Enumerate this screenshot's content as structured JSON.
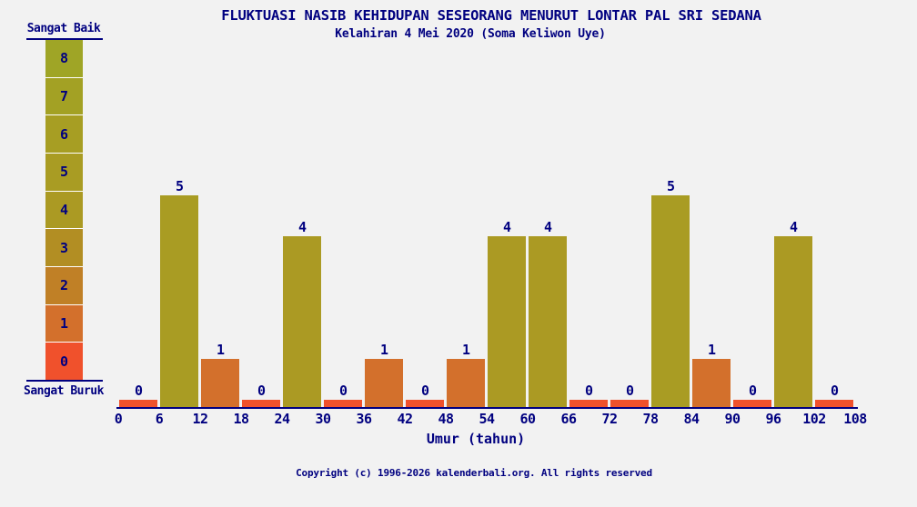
{
  "page": {
    "background": "#f2f2f2",
    "text_color": "#000080"
  },
  "header": {
    "title": "FLUKTUASI NASIB KEHIDUPAN SESEORANG MENURUT LONTAR PAL SRI SEDANA",
    "subtitle": "Kelahiran 4 Mei 2020 (Soma Keliwon Uye)"
  },
  "scale": {
    "top_label": "Sangat Baik",
    "bottom_label": "Sangat Buruk",
    "cells": [
      {
        "value": "8",
        "color": "#9fa526"
      },
      {
        "value": "7",
        "color": "#a3a124"
      },
      {
        "value": "6",
        "color": "#a79e23"
      },
      {
        "value": "5",
        "color": "#a99c23"
      },
      {
        "value": "4",
        "color": "#ab9a23"
      },
      {
        "value": "3",
        "color": "#b28e23"
      },
      {
        "value": "2",
        "color": "#c08026"
      },
      {
        "value": "1",
        "color": "#d3702c"
      },
      {
        "value": "0",
        "color": "#f0512c"
      }
    ]
  },
  "chart_data": {
    "type": "bar",
    "title": "FLUKTUASI NASIB KEHIDUPAN SESEORANG MENURUT LONTAR PAL SRI SEDANA",
    "subtitle": "Kelahiran 4 Mei 2020 (Soma Keliwon Uye)",
    "xlabel": "Umur (tahun)",
    "ylabel": "",
    "ylim": [
      0,
      8
    ],
    "grid": false,
    "legend_position": "left",
    "x_ticks": [
      "0",
      "6",
      "12",
      "18",
      "24",
      "30",
      "36",
      "42",
      "48",
      "54",
      "60",
      "66",
      "72",
      "78",
      "84",
      "90",
      "96",
      "102",
      "108"
    ],
    "bin_start": [
      0,
      6,
      12,
      18,
      24,
      30,
      36,
      42,
      48,
      54,
      60,
      66,
      72,
      78,
      84,
      90,
      96,
      102
    ],
    "bin_end": [
      6,
      12,
      18,
      24,
      30,
      36,
      42,
      48,
      54,
      60,
      66,
      72,
      78,
      84,
      90,
      96,
      102,
      108
    ],
    "values": [
      0,
      5,
      1,
      0,
      4,
      0,
      1,
      0,
      1,
      4,
      4,
      0,
      0,
      5,
      1,
      0,
      4,
      0
    ],
    "value_colors": {
      "0": "#f0512c",
      "1": "#d3702c",
      "4": "#ab9a23",
      "5": "#a99c23"
    },
    "bar_value_labels_shown": true
  },
  "footer": {
    "copyright": "Copyright (c) 1996-2026 kalenderbali.org. All rights reserved"
  }
}
